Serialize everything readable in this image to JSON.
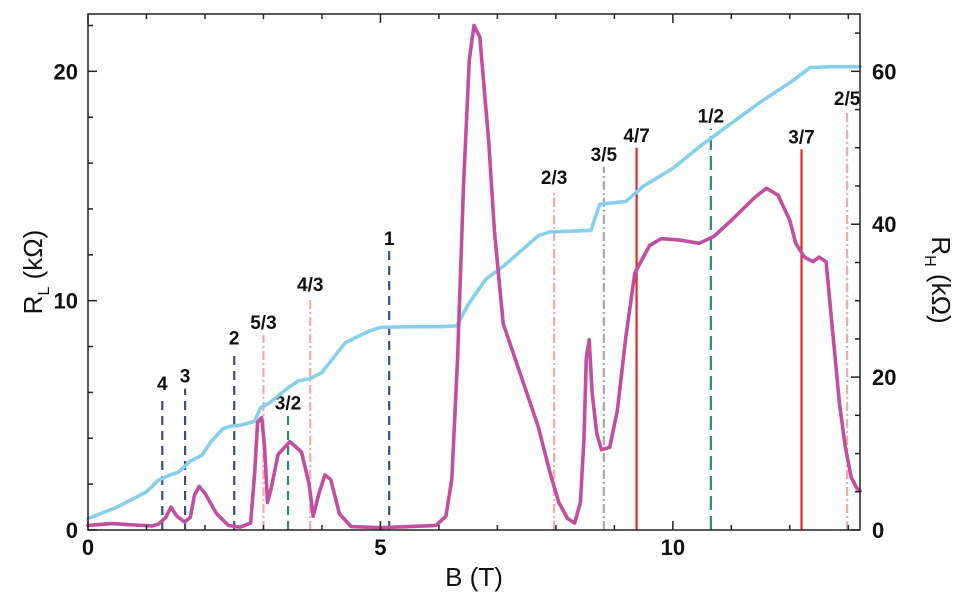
{
  "chart_data": {
    "type": "line",
    "xlabel": "B (T)",
    "ylabel_left": {
      "main": "R",
      "sub": "L",
      "unit": " (kΩ)"
    },
    "ylabel_right": {
      "main": "R",
      "sub": "H",
      "unit": " (kΩ)"
    },
    "xlim": [
      0,
      13.2
    ],
    "ylim_left": [
      0,
      22.5
    ],
    "ylim_right": [
      0,
      67.5
    ],
    "x_ticks": [
      0,
      5,
      10
    ],
    "y_left_ticks": [
      0,
      10,
      20
    ],
    "y_right_ticks": [
      0,
      20,
      40,
      60
    ],
    "grid": false,
    "series": [
      {
        "axis": "right",
        "color": "#86d0ee",
        "points": [
          [
            0,
            1.5
          ],
          [
            0.5,
            3
          ],
          [
            1.0,
            5
          ],
          [
            1.2,
            6.5
          ],
          [
            1.4,
            7.2
          ],
          [
            1.55,
            7.6
          ],
          [
            1.75,
            9
          ],
          [
            1.95,
            9.8
          ],
          [
            2.1,
            11.5
          ],
          [
            2.3,
            13.2
          ],
          [
            2.45,
            13.6
          ],
          [
            2.6,
            13.7
          ],
          [
            2.85,
            14.2
          ],
          [
            2.95,
            16.0
          ],
          [
            3.1,
            16.6
          ],
          [
            3.4,
            18.5
          ],
          [
            3.6,
            19.5
          ],
          [
            3.8,
            19.8
          ],
          [
            4.0,
            20.6
          ],
          [
            4.4,
            24.5
          ],
          [
            4.8,
            26.0
          ],
          [
            5.0,
            26.5
          ],
          [
            5.5,
            26.6
          ],
          [
            6.0,
            26.6
          ],
          [
            6.3,
            26.7
          ],
          [
            6.5,
            29.5
          ],
          [
            6.8,
            32.8
          ],
          [
            7.1,
            34.5
          ],
          [
            7.4,
            36.5
          ],
          [
            7.7,
            38.5
          ],
          [
            7.9,
            39.0
          ],
          [
            8.3,
            39.1
          ],
          [
            8.6,
            39.2
          ],
          [
            8.75,
            42.6
          ],
          [
            9.2,
            43.0
          ],
          [
            9.5,
            45.0
          ],
          [
            10.0,
            47.3
          ],
          [
            10.5,
            50.4
          ],
          [
            11.0,
            53.2
          ],
          [
            11.5,
            56.0
          ],
          [
            12.0,
            58.5
          ],
          [
            12.35,
            60.5
          ],
          [
            12.75,
            60.6
          ],
          [
            13.2,
            60.6
          ]
        ]
      },
      {
        "axis": "left",
        "color": "#c14e9e",
        "points": [
          [
            0,
            0.2
          ],
          [
            0.4,
            0.28
          ],
          [
            0.8,
            0.22
          ],
          [
            1.1,
            0.18
          ],
          [
            1.2,
            0.25
          ],
          [
            1.33,
            0.55
          ],
          [
            1.42,
            1.0
          ],
          [
            1.52,
            0.6
          ],
          [
            1.65,
            0.35
          ],
          [
            1.75,
            0.55
          ],
          [
            1.82,
            1.5
          ],
          [
            1.9,
            1.9
          ],
          [
            2.0,
            1.6
          ],
          [
            2.2,
            0.7
          ],
          [
            2.4,
            0.2
          ],
          [
            2.6,
            0.12
          ],
          [
            2.78,
            0.3
          ],
          [
            2.85,
            2.5
          ],
          [
            2.9,
            4.7
          ],
          [
            2.97,
            4.9
          ],
          [
            3.02,
            3.6
          ],
          [
            3.07,
            1.2
          ],
          [
            3.13,
            1.8
          ],
          [
            3.25,
            3.3
          ],
          [
            3.45,
            3.85
          ],
          [
            3.65,
            3.4
          ],
          [
            3.78,
            2.0
          ],
          [
            3.85,
            0.6
          ],
          [
            3.95,
            1.6
          ],
          [
            4.05,
            2.4
          ],
          [
            4.15,
            2.2
          ],
          [
            4.3,
            0.7
          ],
          [
            4.5,
            0.15
          ],
          [
            5.0,
            0.1
          ],
          [
            5.5,
            0.15
          ],
          [
            5.95,
            0.2
          ],
          [
            6.12,
            0.6
          ],
          [
            6.22,
            2.2
          ],
          [
            6.32,
            7.5
          ],
          [
            6.42,
            15.0
          ],
          [
            6.52,
            20.5
          ],
          [
            6.6,
            22.0
          ],
          [
            6.7,
            21.5
          ],
          [
            6.85,
            17.0
          ],
          [
            6.95,
            13.0
          ],
          [
            7.1,
            9.0
          ],
          [
            7.3,
            7.5
          ],
          [
            7.5,
            6.0
          ],
          [
            7.7,
            4.5
          ],
          [
            7.9,
            2.5
          ],
          [
            8.05,
            1.2
          ],
          [
            8.2,
            0.5
          ],
          [
            8.32,
            0.3
          ],
          [
            8.42,
            1.2
          ],
          [
            8.48,
            4.0
          ],
          [
            8.52,
            7.5
          ],
          [
            8.57,
            8.3
          ],
          [
            8.62,
            6.0
          ],
          [
            8.7,
            4.2
          ],
          [
            8.78,
            3.5
          ],
          [
            8.92,
            3.6
          ],
          [
            9.05,
            5.2
          ],
          [
            9.2,
            8.5
          ],
          [
            9.35,
            11.2
          ],
          [
            9.6,
            12.4
          ],
          [
            9.8,
            12.7
          ],
          [
            10.1,
            12.65
          ],
          [
            10.45,
            12.5
          ],
          [
            10.7,
            12.8
          ],
          [
            11.0,
            13.5
          ],
          [
            11.4,
            14.5
          ],
          [
            11.6,
            14.9
          ],
          [
            11.8,
            14.6
          ],
          [
            12.0,
            13.5
          ],
          [
            12.1,
            12.5
          ],
          [
            12.25,
            11.9
          ],
          [
            12.4,
            11.7
          ],
          [
            12.5,
            11.9
          ],
          [
            12.62,
            11.7
          ],
          [
            12.72,
            9.0
          ],
          [
            12.85,
            5.5
          ],
          [
            12.95,
            3.6
          ],
          [
            13.05,
            2.3
          ],
          [
            13.15,
            1.8
          ],
          [
            13.2,
            1.7
          ]
        ]
      }
    ],
    "filling_markers": [
      {
        "label": "4",
        "x": 1.27,
        "top": 17.5,
        "color": "#3b4f7f",
        "dash": "9 6",
        "label_dy": 0
      },
      {
        "label": "3",
        "x": 1.66,
        "top": 18.5,
        "color": "#3b4f7f",
        "dash": "9 6",
        "label_dy": 0
      },
      {
        "label": "2",
        "x": 2.5,
        "top": 23.5,
        "color": "#3b4f7f",
        "dash": "9 6",
        "label_dy": 0
      },
      {
        "label": "5/3",
        "x": 3.0,
        "top": 25.5,
        "color": "#f5aaa5",
        "dash": "9 3 2 3",
        "label_dy": 0
      },
      {
        "label": "3/2",
        "x": 3.42,
        "top": 15.0,
        "color": "#2a8b75",
        "dash": "9 6",
        "label_dy": 0
      },
      {
        "label": "4/3",
        "x": 3.8,
        "top": 30.5,
        "color": "#f5aaa5",
        "dash": "9 3 2 3",
        "label_dy": 0
      },
      {
        "label": "1",
        "x": 5.15,
        "top": 36.5,
        "color": "#3b4f7f",
        "dash": "9 6",
        "label_dy": 0
      },
      {
        "label": "2/3",
        "x": 7.97,
        "top": 44.5,
        "color": "#f5aaa5",
        "dash": "9 3 2 3",
        "label_dy": 0
      },
      {
        "label": "3/5",
        "x": 8.82,
        "top": 47.5,
        "color": "#a8a8a8",
        "dash": "9 3 2 3",
        "label_dy": 0
      },
      {
        "label": "4/7",
        "x": 9.38,
        "top": 50.0,
        "color": "#e02a2a",
        "dash": "",
        "label_dy": 0
      },
      {
        "label": "1/2",
        "x": 10.65,
        "top": 52.5,
        "color": "#2a8b75",
        "dash": "14 6",
        "label_dy": 0
      },
      {
        "label": "3/7",
        "x": 12.2,
        "top": 49.8,
        "color": "#e02a2a",
        "dash": "",
        "label_dy": 0
      },
      {
        "label": "2/5",
        "x": 12.98,
        "top": 54.8,
        "color": "#f5aaa5",
        "dash": "9 3 2 3",
        "label_dy": 0
      }
    ]
  }
}
